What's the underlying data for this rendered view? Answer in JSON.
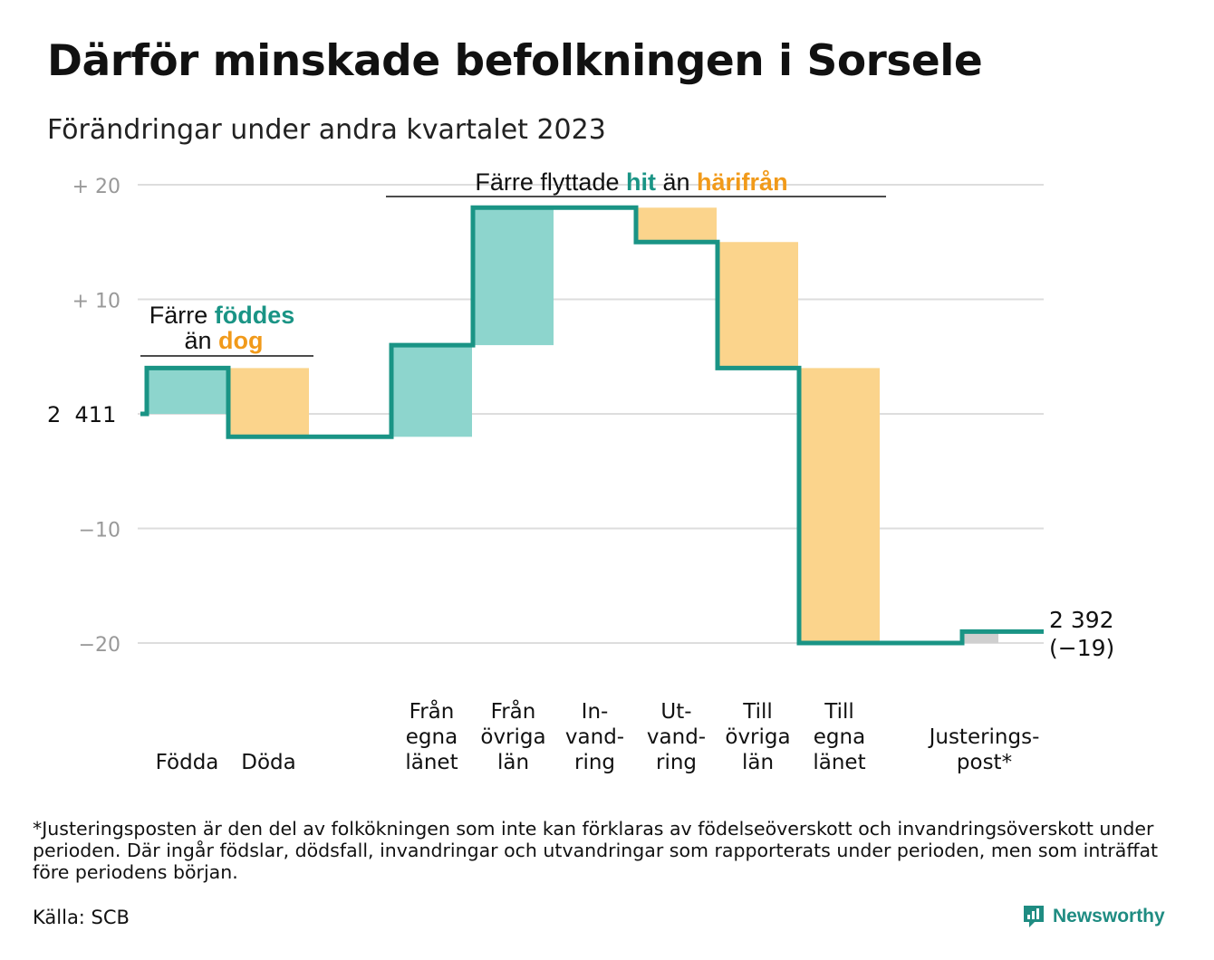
{
  "title": "Därför minskade befolkningen i Sorsele",
  "subtitle": "Förändringar under andra kvartalet 2023",
  "chart_data": {
    "type": "waterfall",
    "start_value": 2411,
    "start_label": "2 411",
    "end_value": 2392,
    "end_label": "2 392",
    "end_change_label": "(−19)",
    "ylim": [
      -20,
      20
    ],
    "y_ticks": [
      {
        "value": 20,
        "label": "+  20"
      },
      {
        "value": 10,
        "label": "+  10"
      },
      {
        "value": -10,
        "label": "−10"
      },
      {
        "value": -20,
        "label": "−20"
      }
    ],
    "steps": [
      {
        "category": [
          "Födda"
        ],
        "change": 4,
        "type": "increase"
      },
      {
        "category": [
          "Döda"
        ],
        "change": -6,
        "type": "decrease"
      },
      {
        "category": [
          "Från",
          "egna",
          "länet"
        ],
        "change": 8,
        "type": "increase"
      },
      {
        "category": [
          "Från",
          "övriga",
          "län"
        ],
        "change": 12,
        "type": "increase"
      },
      {
        "category": [
          "In-",
          "vand-",
          "ring"
        ],
        "change": 0,
        "type": "increase"
      },
      {
        "category": [
          "Ut-",
          "vand-",
          "ring"
        ],
        "change": -3,
        "type": "decrease"
      },
      {
        "category": [
          "Till",
          "övriga",
          "län"
        ],
        "change": -11,
        "type": "decrease"
      },
      {
        "category": [
          "Till",
          "egna",
          "länet"
        ],
        "change": -24,
        "type": "decrease"
      },
      {
        "category": [
          "Justerings-",
          "post*"
        ],
        "change": 1,
        "type": "adjustment"
      }
    ],
    "annotations": [
      {
        "parts": [
          [
            "Färre ",
            "plain"
          ],
          [
            "föddes",
            "teal"
          ]
        ],
        "line2": [
          [
            "än ",
            "plain"
          ],
          [
            "dog",
            "orange"
          ]
        ]
      },
      {
        "parts": [
          [
            "Färre flyttade ",
            "plain"
          ],
          [
            "hit",
            "teal"
          ],
          [
            " än ",
            "plain"
          ],
          [
            "härifrån",
            "orange"
          ]
        ]
      }
    ],
    "colors": {
      "line": "#1a9485",
      "increase": "#8dd5cd",
      "decrease": "#fbd48c",
      "adjustment": "#cfcfcf",
      "teal_text": "#1a9485",
      "orange_text": "#f19a1a",
      "grid": "#dddddd",
      "tick_text": "#999999"
    }
  },
  "footnote": "*Justeringsposten är den del av folkökningen som inte kan förklaras av födelseöverskott och invandringsöverskott under perioden. Där ingår födslar, dödsfall, invandringar och utvandringar som rapporterats under perioden, men som inträffat före periodens början.",
  "source": "Källa: SCB",
  "brand": {
    "name": "Newsworthy",
    "icon": "newsworthy-chart-bubble-icon"
  }
}
